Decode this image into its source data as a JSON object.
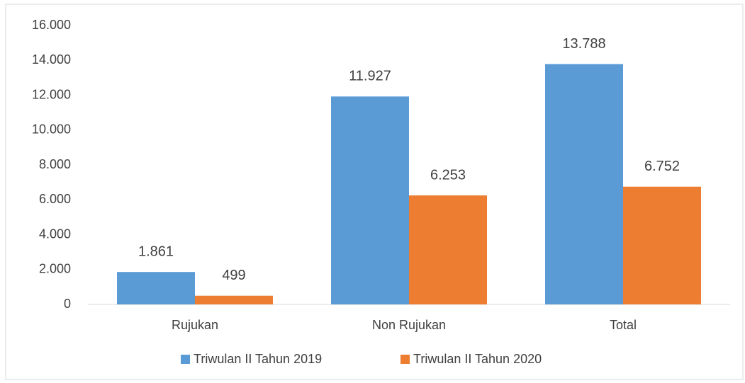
{
  "chart_data": {
    "type": "bar",
    "categories": [
      "Rujukan",
      "Non Rujukan",
      "Total"
    ],
    "series": [
      {
        "name": "Triwulan II Tahun 2019",
        "color": "#5b9bd5",
        "values": [
          1861,
          11927,
          13788
        ],
        "value_labels": [
          "1.861",
          "11.927",
          "13.788"
        ]
      },
      {
        "name": "Triwulan II Tahun 2020",
        "color": "#ed7d31",
        "values": [
          499,
          6253,
          6752
        ],
        "value_labels": [
          "499",
          "6.253",
          "6.752"
        ]
      }
    ],
    "ylim": [
      0,
      16000
    ],
    "yticks": [
      0,
      {
        "value": 2000,
        "label": "2.000"
      },
      {
        "value": 4000,
        "label": "4.000"
      },
      {
        "value": 6000,
        "label": "6.000"
      },
      {
        "value": 8000,
        "label": "8.000"
      },
      {
        "value": 10000,
        "label": "10.000"
      },
      {
        "value": 12000,
        "label": "12.000"
      },
      {
        "value": 14000,
        "label": "14.000"
      },
      {
        "value": 16000,
        "label": "16.000"
      }
    ],
    "grid": false,
    "legend": "bottom"
  }
}
